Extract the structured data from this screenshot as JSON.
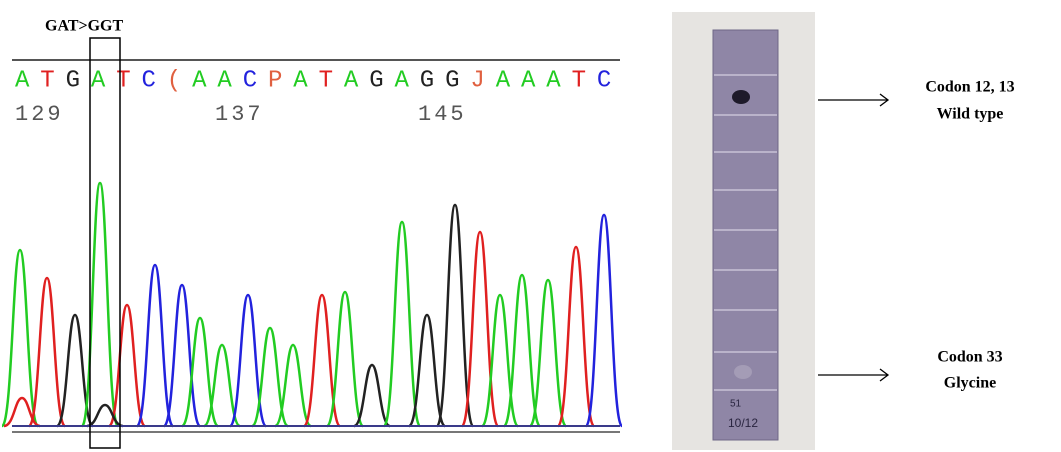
{
  "chromatogram": {
    "mutation_label": "GAT>GGT",
    "sequence": [
      "A",
      "T",
      "G",
      "A",
      "T",
      "C",
      "(",
      "A",
      "A",
      "C",
      "P",
      "A",
      "T",
      "A",
      "G",
      "A",
      "G",
      "G",
      "J",
      "A",
      "A",
      "A",
      "T",
      "C"
    ],
    "positions": [
      "129",
      "137",
      "145"
    ]
  },
  "strip": {
    "handwriting": [
      "51",
      "10/12"
    ],
    "annotations": [
      {
        "lines": [
          "Codon 12, 13",
          "Wild type"
        ]
      },
      {
        "lines": [
          "Codon 33",
          "Glycine"
        ]
      }
    ]
  }
}
